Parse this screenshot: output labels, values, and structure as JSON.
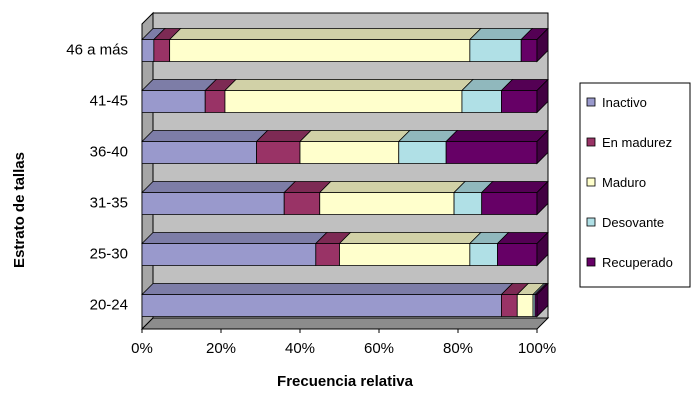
{
  "chart_data": {
    "type": "bar",
    "orientation": "horizontal",
    "stacked": "percent",
    "three_d": true,
    "categories": [
      "20-24",
      "25-30",
      "31-35",
      "36-40",
      "41-45",
      "46 a más"
    ],
    "series": [
      {
        "name": "Inactivo",
        "color": "#9999cc",
        "values": [
          91,
          44,
          36,
          29,
          16,
          3
        ]
      },
      {
        "name": "En madurez",
        "color": "#993366",
        "values": [
          4,
          6,
          9,
          11,
          5,
          4
        ]
      },
      {
        "name": "Maduro",
        "color": "#ffffcc",
        "values": [
          4,
          33,
          34,
          25,
          60,
          76
        ]
      },
      {
        "name": "Desovante",
        "color": "#b0e0e6",
        "values": [
          0.5,
          7,
          7,
          12,
          10,
          13
        ]
      },
      {
        "name": "Recuperado",
        "color": "#660066",
        "values": [
          0.5,
          10,
          14,
          23,
          9,
          4
        ]
      }
    ],
    "x_ticks": [
      "0%",
      "20%",
      "40%",
      "60%",
      "80%",
      "100%"
    ],
    "xlim": [
      0,
      100
    ],
    "xlabel": "Frecuencia relativa",
    "ylabel": "Estrato de tallas",
    "legend_position": "right",
    "grid": false,
    "wall_color": "#c0c0c0"
  }
}
